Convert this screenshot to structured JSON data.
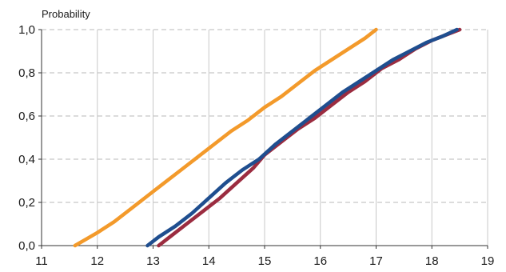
{
  "chart_data": {
    "type": "line",
    "title": "",
    "xlabel": "",
    "ylabel": "Probability",
    "xlim": [
      11,
      19
    ],
    "ylim": [
      0,
      1.0
    ],
    "x_ticks": [
      "11",
      "12",
      "13",
      "14",
      "15",
      "16",
      "17",
      "18",
      "19"
    ],
    "y_ticks": [
      "0,0",
      "0,2",
      "0,4",
      "0,6",
      "0,8",
      "1,0"
    ],
    "grid": {
      "vertical": "solid",
      "horizontal": "dashed"
    },
    "series": [
      {
        "color": "#f39a2b",
        "points": [
          [
            11.6,
            0.0
          ],
          [
            11.8,
            0.03
          ],
          [
            12.0,
            0.06
          ],
          [
            12.3,
            0.11
          ],
          [
            12.6,
            0.17
          ],
          [
            12.9,
            0.23
          ],
          [
            13.2,
            0.29
          ],
          [
            13.5,
            0.35
          ],
          [
            13.8,
            0.41
          ],
          [
            14.1,
            0.47
          ],
          [
            14.4,
            0.53
          ],
          [
            14.7,
            0.58
          ],
          [
            15.0,
            0.64
          ],
          [
            15.3,
            0.69
          ],
          [
            15.6,
            0.75
          ],
          [
            15.9,
            0.81
          ],
          [
            16.2,
            0.86
          ],
          [
            16.5,
            0.91
          ],
          [
            16.8,
            0.96
          ],
          [
            17.0,
            1.0
          ]
        ]
      },
      {
        "color": "#9b2c40",
        "points": [
          [
            13.1,
            0.0
          ],
          [
            13.3,
            0.04
          ],
          [
            13.6,
            0.1
          ],
          [
            13.9,
            0.16
          ],
          [
            14.2,
            0.22
          ],
          [
            14.5,
            0.29
          ],
          [
            14.8,
            0.36
          ],
          [
            15.0,
            0.42
          ],
          [
            15.3,
            0.48
          ],
          [
            15.6,
            0.54
          ],
          [
            15.9,
            0.59
          ],
          [
            16.2,
            0.65
          ],
          [
            16.5,
            0.71
          ],
          [
            16.8,
            0.76
          ],
          [
            17.1,
            0.82
          ],
          [
            17.4,
            0.86
          ],
          [
            17.7,
            0.91
          ],
          [
            18.0,
            0.95
          ],
          [
            18.3,
            0.98
          ],
          [
            18.5,
            1.0
          ]
        ]
      },
      {
        "color": "#1f4e8f",
        "points": [
          [
            12.9,
            0.0
          ],
          [
            13.1,
            0.04
          ],
          [
            13.4,
            0.09
          ],
          [
            13.7,
            0.15
          ],
          [
            14.0,
            0.22
          ],
          [
            14.3,
            0.29
          ],
          [
            14.6,
            0.35
          ],
          [
            14.9,
            0.4
          ],
          [
            15.2,
            0.47
          ],
          [
            15.5,
            0.53
          ],
          [
            15.8,
            0.59
          ],
          [
            16.1,
            0.65
          ],
          [
            16.4,
            0.71
          ],
          [
            16.7,
            0.76
          ],
          [
            17.0,
            0.81
          ],
          [
            17.3,
            0.86
          ],
          [
            17.6,
            0.9
          ],
          [
            17.9,
            0.94
          ],
          [
            18.2,
            0.97
          ],
          [
            18.45,
            1.0
          ]
        ]
      }
    ]
  }
}
